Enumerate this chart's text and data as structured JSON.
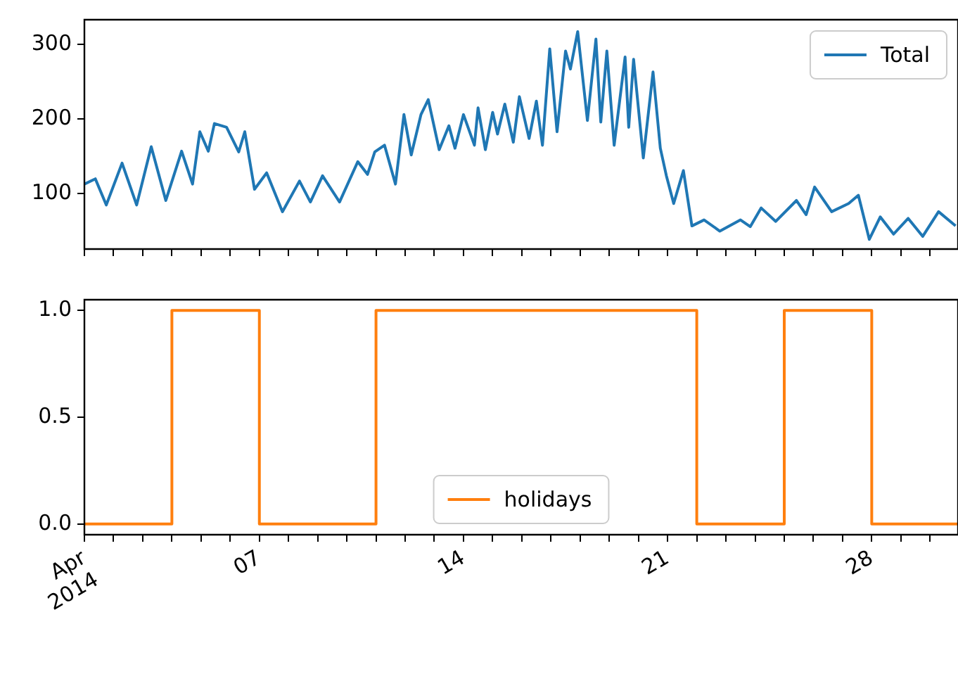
{
  "chart_data": [
    {
      "type": "line",
      "xlim": [
        "2014-04-01T00:00",
        "2014-04-30T23:00"
      ],
      "ylim": [
        26,
        333
      ],
      "yticks": [
        100,
        200,
        300
      ],
      "tick_labels": "y",
      "legend": "top right",
      "xticks": [
        {
          "value": "2014-04-01",
          "label": null
        },
        {
          "value": "2014-04-02",
          "label": null
        },
        {
          "value": "2014-04-03",
          "label": null
        },
        {
          "value": "2014-04-04",
          "label": null
        },
        {
          "value": "2014-04-05",
          "label": null
        },
        {
          "value": "2014-04-06",
          "label": null
        },
        {
          "value": "2014-04-07",
          "label": null
        },
        {
          "value": "2014-04-08",
          "label": null
        },
        {
          "value": "2014-04-09",
          "label": null
        },
        {
          "value": "2014-04-10",
          "label": null
        },
        {
          "value": "2014-04-11",
          "label": null
        },
        {
          "value": "2014-04-12",
          "label": null
        },
        {
          "value": "2014-04-13",
          "label": null
        },
        {
          "value": "2014-04-14",
          "label": null
        },
        {
          "value": "2014-04-15",
          "label": null
        },
        {
          "value": "2014-04-16",
          "label": null
        },
        {
          "value": "2014-04-17",
          "label": null
        },
        {
          "value": "2014-04-18",
          "label": null
        },
        {
          "value": "2014-04-19",
          "label": null
        },
        {
          "value": "2014-04-20",
          "label": null
        },
        {
          "value": "2014-04-21",
          "label": null
        },
        {
          "value": "2014-04-22",
          "label": null
        },
        {
          "value": "2014-04-23",
          "label": null
        },
        {
          "value": "2014-04-24",
          "label": null
        },
        {
          "value": "2014-04-25",
          "label": null
        },
        {
          "value": "2014-04-26",
          "label": null
        },
        {
          "value": "2014-04-27",
          "label": null
        },
        {
          "value": "2014-04-28",
          "label": null
        },
        {
          "value": "2014-04-29",
          "label": null
        },
        {
          "value": "2014-04-30",
          "label": null
        }
      ],
      "series": [
        {
          "name": "Total",
          "color": "#1f77b4",
          "x": [
            "2014-04-01T00:00",
            "2014-04-01T09:00",
            "2014-04-01T18:00",
            "2014-04-02T07:00",
            "2014-04-02T19:00",
            "2014-04-03T07:00",
            "2014-04-03T19:00",
            "2014-04-04T08:00",
            "2014-04-04T17:00",
            "2014-04-04T23:00",
            "2014-04-05T06:00",
            "2014-04-05T11:00",
            "2014-04-05T21:00",
            "2014-04-06T07:00",
            "2014-04-06T12:00",
            "2014-04-06T20:00",
            "2014-04-07T06:00",
            "2014-04-07T19:00",
            "2014-04-08T09:00",
            "2014-04-08T18:00",
            "2014-04-09T04:00",
            "2014-04-09T18:00",
            "2014-04-10T09:00",
            "2014-04-10T17:00",
            "2014-04-10T23:00",
            "2014-04-11T07:00",
            "2014-04-11T16:00",
            "2014-04-11T23:00",
            "2014-04-12T05:00",
            "2014-04-12T13:00",
            "2014-04-12T19:00",
            "2014-04-13T04:00",
            "2014-04-13T12:00",
            "2014-04-13T17:00",
            "2014-04-14T00:00",
            "2014-04-14T09:00",
            "2014-04-14T12:00",
            "2014-04-14T18:00",
            "2014-04-15T00:00",
            "2014-04-15T04:00",
            "2014-04-15T10:00",
            "2014-04-15T17:00",
            "2014-04-15T22:00",
            "2014-04-16T06:00",
            "2014-04-16T12:00",
            "2014-04-16T17:00",
            "2014-04-16T23:00",
            "2014-04-17T05:00",
            "2014-04-17T12:00",
            "2014-04-17T16:00",
            "2014-04-17T22:00",
            "2014-04-18T06:00",
            "2014-04-18T13:00",
            "2014-04-18T17:00",
            "2014-04-18T22:00",
            "2014-04-19T04:00",
            "2014-04-19T13:00",
            "2014-04-19T16:00",
            "2014-04-19T20:00",
            "2014-04-20T04:00",
            "2014-04-20T12:00",
            "2014-04-20T18:00",
            "2014-04-20T23:00",
            "2014-04-21T05:00",
            "2014-04-21T13:00",
            "2014-04-21T20:00",
            "2014-04-22T06:00",
            "2014-04-22T19:00",
            "2014-04-23T12:00",
            "2014-04-23T20:00",
            "2014-04-24T05:00",
            "2014-04-24T17:00",
            "2014-04-25T10:00",
            "2014-04-25T18:00",
            "2014-04-26T01:00",
            "2014-04-26T15:00",
            "2014-04-27T05:00",
            "2014-04-27T13:00",
            "2014-04-27T22:00",
            "2014-04-28T07:00",
            "2014-04-28T18:00",
            "2014-04-29T06:00",
            "2014-04-29T18:00",
            "2014-04-30T07:00",
            "2014-04-30T21:00"
          ],
          "values": [
            113,
            120,
            85,
            141,
            85,
            163,
            91,
            157,
            113,
            183,
            157,
            194,
            189,
            156,
            183,
            106,
            128,
            76,
            117,
            89,
            124,
            89,
            143,
            126,
            156,
            165,
            113,
            206,
            152,
            206,
            226,
            159,
            191,
            161,
            206,
            165,
            215,
            159,
            209,
            180,
            220,
            169,
            230,
            174,
            224,
            165,
            294,
            183,
            291,
            267,
            317,
            198,
            307,
            196,
            291,
            165,
            283,
            189,
            280,
            148,
            263,
            161,
            124,
            87,
            131,
            57,
            65,
            50,
            65,
            56,
            81,
            63,
            91,
            72,
            109,
            76,
            87,
            98,
            39,
            69,
            46,
            67,
            43,
            76,
            57
          ]
        }
      ]
    },
    {
      "type": "step",
      "xlim": [
        "2014-04-01T00:00",
        "2014-04-30T23:00"
      ],
      "ylim": [
        -0.05,
        1.05
      ],
      "yticks": [
        {
          "value": 0,
          "label": "0.0"
        },
        {
          "value": 0.5,
          "label": "0.5"
        },
        {
          "value": 1,
          "label": "1.0"
        }
      ],
      "legend": "bottom",
      "xticks": [
        {
          "value": "2014-04-01",
          "label": "Apr\n2014"
        },
        {
          "value": "2014-04-02",
          "label": null
        },
        {
          "value": "2014-04-03",
          "label": null
        },
        {
          "value": "2014-04-04",
          "label": null
        },
        {
          "value": "2014-04-05",
          "label": null
        },
        {
          "value": "2014-04-06",
          "label": null
        },
        {
          "value": "2014-04-07",
          "label": "07"
        },
        {
          "value": "2014-04-08",
          "label": null
        },
        {
          "value": "2014-04-09",
          "label": null
        },
        {
          "value": "2014-04-10",
          "label": null
        },
        {
          "value": "2014-04-11",
          "label": null
        },
        {
          "value": "2014-04-12",
          "label": null
        },
        {
          "value": "2014-04-13",
          "label": null
        },
        {
          "value": "2014-04-14",
          "label": "14"
        },
        {
          "value": "2014-04-15",
          "label": null
        },
        {
          "value": "2014-04-16",
          "label": null
        },
        {
          "value": "2014-04-17",
          "label": null
        },
        {
          "value": "2014-04-18",
          "label": null
        },
        {
          "value": "2014-04-19",
          "label": null
        },
        {
          "value": "2014-04-20",
          "label": null
        },
        {
          "value": "2014-04-21",
          "label": "21"
        },
        {
          "value": "2014-04-22",
          "label": null
        },
        {
          "value": "2014-04-23",
          "label": null
        },
        {
          "value": "2014-04-24",
          "label": null
        },
        {
          "value": "2014-04-25",
          "label": null
        },
        {
          "value": "2014-04-26",
          "label": null
        },
        {
          "value": "2014-04-27",
          "label": null
        },
        {
          "value": "2014-04-28",
          "label": "28"
        },
        {
          "value": "2014-04-29",
          "label": null
        },
        {
          "value": "2014-04-30",
          "label": null
        }
      ],
      "series": [
        {
          "name": "holidays",
          "color": "#ff7f0e",
          "x": [
            "2014-04-01T00:00",
            "2014-04-04T00:00",
            "2014-04-07T00:00",
            "2014-04-11T00:00",
            "2014-04-22T00:00",
            "2014-04-25T00:00",
            "2014-04-28T00:00",
            "2014-04-30T23:00"
          ],
          "values": [
            0,
            1,
            0,
            1,
            0,
            1,
            0,
            0
          ]
        }
      ]
    }
  ]
}
